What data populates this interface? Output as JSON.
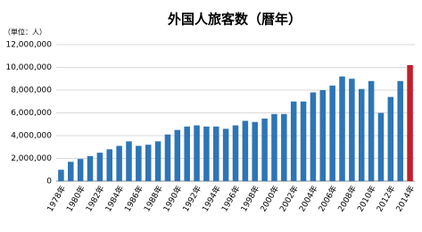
{
  "chart_data": {
    "type": "bar",
    "title": "外国人旅客数（暦年）",
    "y_label": "（単位：人）",
    "categories": [
      "1978年",
      null,
      "1980年",
      null,
      "1982年",
      null,
      "1984年",
      null,
      "1986年",
      null,
      "1988年",
      null,
      "1990年",
      null,
      "1992年",
      null,
      "1994年",
      null,
      "1996年",
      null,
      "1998年",
      null,
      "2000年",
      null,
      "2002年",
      null,
      "2004年",
      null,
      "2006年",
      null,
      "2008年",
      null,
      "2010年",
      null,
      "2012年",
      null,
      "2014年"
    ],
    "values": [
      1000000,
      1700000,
      1950000,
      2200000,
      2500000,
      2800000,
      3100000,
      3500000,
      3100000,
      3200000,
      3500000,
      4100000,
      4500000,
      4800000,
      4900000,
      4800000,
      4800000,
      4600000,
      4900000,
      5300000,
      5200000,
      5500000,
      5900000,
      5900000,
      7000000,
      7000000,
      7800000,
      8000000,
      8400000,
      9200000,
      9000000,
      8100000,
      8800000,
      6000000,
      7400000,
      8800000,
      10200000
    ],
    "colors": [
      "#2e75b6",
      "#2e75b6",
      "#2e75b6",
      "#2e75b6",
      "#2e75b6",
      "#2e75b6",
      "#2e75b6",
      "#2e75b6",
      "#2e75b6",
      "#2e75b6",
      "#2e75b6",
      "#2e75b6",
      "#2e75b6",
      "#2e75b6",
      "#2e75b6",
      "#2e75b6",
      "#2e75b6",
      "#2e75b6",
      "#2e75b6",
      "#2e75b6",
      "#2e75b6",
      "#2e75b6",
      "#2e75b6",
      "#2e75b6",
      "#2e75b6",
      "#2e75b6",
      "#2e75b6",
      "#2e75b6",
      "#2e75b6",
      "#2e75b6",
      "#2e75b6",
      "#2e75b6",
      "#2e75b6",
      "#2e75b6",
      "#2e75b6",
      "#2e75b6",
      "#c0202a"
    ],
    "ylim": [
      0,
      12000000
    ],
    "yticks": [
      0,
      {
        "value": 2000000,
        "label": "2,000,000"
      },
      {
        "value": 4000000,
        "label": "4,000,000"
      },
      {
        "value": 6000000,
        "label": "6,000,000"
      },
      {
        "value": 8000000,
        "label": "8,000,000"
      },
      {
        "value": 10000000,
        "label": "10,000,000"
      },
      {
        "value": 12000000,
        "label": "12,000,000"
      }
    ],
    "grid": true
  }
}
